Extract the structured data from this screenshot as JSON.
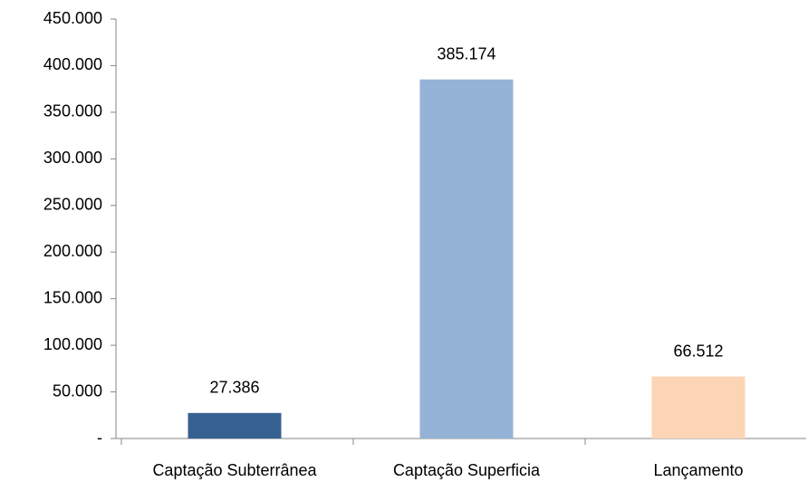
{
  "chart_data": {
    "type": "bar",
    "categories": [
      "Captação Subterrânea",
      "Captação Superficia",
      "Lançamento"
    ],
    "values": [
      27386,
      385174,
      66512
    ],
    "value_labels": [
      "27.386",
      "385.174",
      "66.512"
    ],
    "colors": [
      "#376092",
      "#95b3d7",
      "#fcd5b5"
    ],
    "ylim": [
      0,
      450000
    ],
    "yticks": [
      {
        "value": 0,
        "label": "-"
      },
      {
        "value": 50000,
        "label": "50.000"
      },
      {
        "value": 100000,
        "label": "100.000"
      },
      {
        "value": 150000,
        "label": "150.000"
      },
      {
        "value": 200000,
        "label": "200.000"
      },
      {
        "value": 250000,
        "label": "250.000"
      },
      {
        "value": 300000,
        "label": "300.000"
      },
      {
        "value": 350000,
        "label": "350.000"
      },
      {
        "value": 400000,
        "label": "400.000"
      },
      {
        "value": 450000,
        "label": "450.000"
      }
    ],
    "grid": false
  }
}
